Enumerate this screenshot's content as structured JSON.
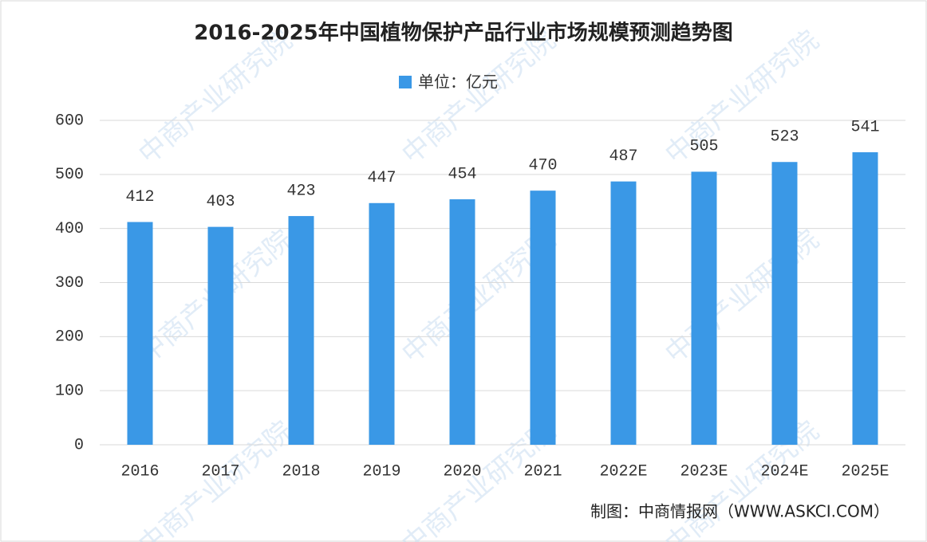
{
  "chart_data": {
    "type": "bar",
    "title": "2016-2025年中国植物保护产品行业市场规模预测趋势图",
    "legend": "单位：亿元",
    "source": "制图：中商情报网（WWW.ASKCI.COM）",
    "watermark": "中商产业研究院",
    "categories": [
      "2016",
      "2017",
      "2018",
      "2019",
      "2020",
      "2021",
      "2022E",
      "2023E",
      "2024E",
      "2025E"
    ],
    "values": [
      412,
      403,
      423,
      447,
      454,
      470,
      487,
      505,
      523,
      541
    ],
    "color": "#3a98e6",
    "ylim": [
      0,
      600
    ],
    "yticks": [
      0,
      100,
      200,
      300,
      400,
      500,
      600
    ],
    "grid": true
  }
}
